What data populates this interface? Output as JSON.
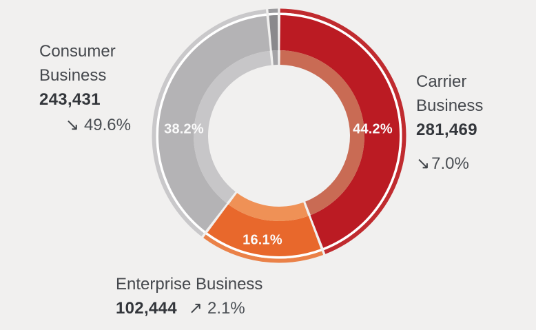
{
  "canvas": {
    "background": "#f1f0ef"
  },
  "icons": {
    "trend_down": "↘",
    "trend_up": "↗"
  },
  "callouts": {
    "consumer": {
      "line1": "Consumer",
      "line2": "Business",
      "value": "243,431",
      "change": "49.6%",
      "trend": "down"
    },
    "carrier": {
      "line1": "Carrier",
      "line2": "Business",
      "value": "281,469",
      "change": "7.0%",
      "trend": "down"
    },
    "enterprise": {
      "line1": "Enterprise Business",
      "value": "102,444",
      "change": "2.1%",
      "trend": "up"
    }
  },
  "chart_data": {
    "type": "pie",
    "variant": "donut",
    "clockwise": true,
    "start_angle_deg": 0,
    "segments": [
      {
        "label": "Carrier Business",
        "value": 281469,
        "pct": 44.2,
        "pct_label": "44.2%",
        "change": "-7.0%",
        "color": "#bb1b23",
        "color_inner": "#c96b54",
        "color_rim": "#c02b2f"
      },
      {
        "label": "Enterprise Business",
        "value": 102444,
        "pct": 16.1,
        "pct_label": "16.1%",
        "change": "+2.1%",
        "color": "#e8682c",
        "color_inner": "#ef9156",
        "color_rim": "#ea8148"
      },
      {
        "label": "Consumer Business",
        "value": 243431,
        "pct": 38.2,
        "pct_label": "38.2%",
        "change": "-49.6%",
        "color": "#b4b3b5",
        "color_inner": "#c7c6c8",
        "color_rim": "#c9c8ca"
      },
      {
        "label": "",
        "value": null,
        "pct": 1.5,
        "pct_label": "",
        "change": "",
        "color": "#8a898c",
        "color_inner": "#a4a3a6",
        "color_rim": "#9c9b9e"
      }
    ],
    "label_text_color": "#fafafa",
    "separator_color": "#ffffff"
  }
}
